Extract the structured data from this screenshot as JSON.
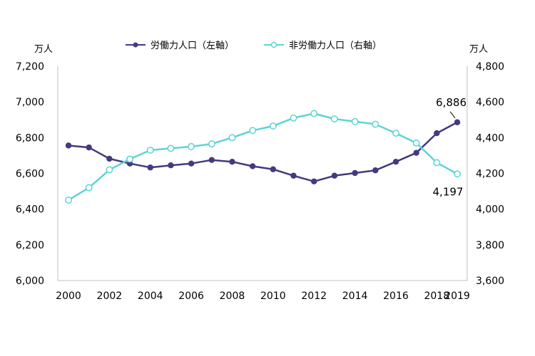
{
  "chart_data": {
    "type": "line",
    "x": [
      2000,
      2001,
      2002,
      2003,
      2004,
      2005,
      2006,
      2007,
      2008,
      2009,
      2010,
      2011,
      2012,
      2013,
      2014,
      2015,
      2016,
      2017,
      2018,
      2019
    ],
    "x_tick_labels": [
      "2000",
      "2002",
      "2004",
      "2006",
      "2008",
      "2010",
      "2012",
      "2014",
      "2016",
      "2018",
      "2019"
    ],
    "series": [
      {
        "name": "労働力人口（左軸）",
        "axis": "left",
        "color": "#433a7f",
        "marker": "filled-circle",
        "values": [
          6756,
          6745,
          6682,
          6655,
          6633,
          6645,
          6655,
          6675,
          6665,
          6640,
          6623,
          6587,
          6555,
          6587,
          6602,
          6617,
          6665,
          6715,
          6825,
          6886
        ]
      },
      {
        "name": "非労働力人口（右軸）",
        "axis": "right",
        "color": "#5ed3d6",
        "marker": "open-circle",
        "values": [
          4050,
          4120,
          4220,
          4280,
          4330,
          4340,
          4350,
          4365,
          4400,
          4440,
          4465,
          4510,
          4535,
          4505,
          4490,
          4475,
          4425,
          4370,
          4260,
          4197
        ]
      }
    ],
    "y_left": {
      "unit": "万人",
      "ylim": [
        6000,
        7200
      ],
      "ticks": [
        "6,000",
        "6,200",
        "6,400",
        "6,600",
        "6,800",
        "7,000",
        "7,200"
      ]
    },
    "y_right": {
      "unit": "万人",
      "ylim": [
        3600,
        4800
      ],
      "ticks": [
        "3,600",
        "3,800",
        "4,000",
        "4,200",
        "4,400",
        "4,600",
        "4,800"
      ]
    },
    "annotations": [
      {
        "series": 0,
        "x": 2019,
        "label": "6,886"
      },
      {
        "series": 1,
        "x": 2019,
        "label": "4,197"
      }
    ],
    "legend_position": "top-center",
    "grid": false
  }
}
